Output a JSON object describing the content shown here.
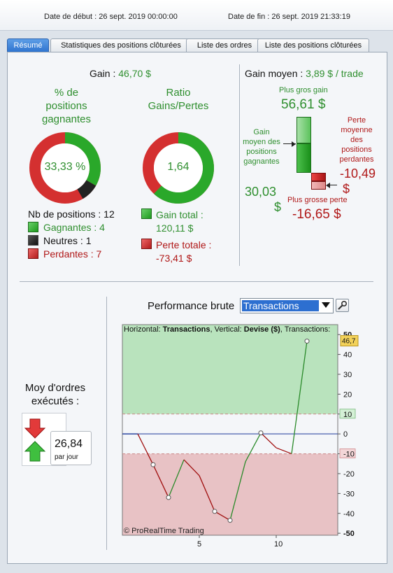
{
  "header": {
    "start_label": "Date de début :",
    "start_value": "26 sept. 2019 00:00:00",
    "end_label": "Date de fin :",
    "end_value": "26 sept. 2019 21:33:19"
  },
  "tabs": [
    {
      "label": "Résumé"
    },
    {
      "label": "Statistiques des positions clôturées"
    },
    {
      "label": "Liste des ordres"
    },
    {
      "label": "Liste des positions clôturées"
    }
  ],
  "summary": {
    "gain_label": "Gain :",
    "gain_value": "46,70 $",
    "pct_title_1": "% de",
    "pct_title_2": "positions",
    "pct_title_3": "gagnantes",
    "pct_value": "33,33 %",
    "ratio_title_1": "Ratio",
    "ratio_title_2": "Gains/Pertes",
    "ratio_value": "1,64",
    "nb_positions": "Nb de positions : 12",
    "gagnantes": "Gagnantes : 4",
    "neutres": "Neutres : 1",
    "perdantes": "Perdantes : 7",
    "gain_total_label": "Gain total :",
    "gain_total_value": "120,11 $",
    "perte_totale_label": "Perte totale :",
    "perte_totale_value": "-73,41 $",
    "donut_pct": {
      "win": 0.3333,
      "neutral": 0.0833,
      "loss": 0.5833
    },
    "donut_ratio": {
      "gain": 120.11,
      "loss": 73.41
    }
  },
  "gain_moyen": {
    "label": "Gain moyen :",
    "value": "3,89 $ / trade",
    "plus_gros_gain_label": "Plus gros gain",
    "plus_gros_gain_value": "56,61 $",
    "gain_moyen_gagnantes_1": "Gain",
    "gain_moyen_gagnantes_2": "moyen des",
    "gain_moyen_gagnantes_3": "positions",
    "gain_moyen_gagnantes_4": "gagnantes",
    "gain_moyen_gagnantes_value_1": "30,03",
    "gain_moyen_gagnantes_value_2": "$",
    "perte_moyenne_1": "Perte",
    "perte_moyenne_2": "moyenne",
    "perte_moyenne_3": "des",
    "perte_moyenne_4": "positions",
    "perte_moyenne_5": "perdantes",
    "perte_moyenne_value_1": "-10,49",
    "perte_moyenne_value_2": "$",
    "plus_grosse_perte_label": "Plus grosse perte",
    "plus_grosse_perte_value": "-16,65 $"
  },
  "performance": {
    "label": "Performance brute",
    "dropdown_value": "Transactions"
  },
  "orders": {
    "title_1": "Moy d'ordres",
    "title_2": "exécutés :",
    "value": "26,84",
    "unit": "par jour"
  },
  "chart_data": {
    "type": "line",
    "title_prefix_1": "Horizontal: ",
    "title_bold_1": "Transactions",
    "title_prefix_2": ", Vertical: ",
    "title_bold_2": "Devise ($)",
    "title_prefix_3": ", Transactions:",
    "watermark": "© ProRealTime Trading",
    "x": [
      0,
      1,
      2,
      3,
      4,
      5,
      6,
      7,
      8,
      9,
      10,
      11,
      12
    ],
    "y": [
      0,
      0,
      -15.5,
      -32,
      -13,
      -21,
      -39,
      -43.5,
      -14,
      0.5,
      -7,
      -10,
      46.7
    ],
    "segment_colors": [
      "#1e3a9a",
      "#a01010",
      "#a01010",
      "#2a8a2a",
      "#a01010",
      "#a01010",
      "#a01010",
      "#2a8a2a",
      "#2a8a2a",
      "#a01010",
      "#a01010",
      "#2a8a2a"
    ],
    "markers_x": [
      2,
      3,
      6,
      7,
      9,
      12
    ],
    "xticks": [
      {
        "v": 5,
        "label": "5"
      },
      {
        "v": 10,
        "label": "10"
      }
    ],
    "yticks": [
      {
        "v": 50,
        "label": "50",
        "bold": true
      },
      {
        "v": 40,
        "label": "40"
      },
      {
        "v": 30,
        "label": "30"
      },
      {
        "v": 20,
        "label": "20"
      },
      {
        "v": 10,
        "label": "10",
        "box": "green"
      },
      {
        "v": 0,
        "label": "0"
      },
      {
        "v": -10,
        "label": "-10",
        "box": "red"
      },
      {
        "v": -20,
        "label": "-20"
      },
      {
        "v": -30,
        "label": "-30"
      },
      {
        "v": -40,
        "label": "-40"
      },
      {
        "v": -50,
        "label": "-50",
        "bold": true
      }
    ],
    "last_value_label": "46,7",
    "xlim": [
      0,
      14
    ],
    "ylim": [
      -51,
      55
    ],
    "upper_zone": 10,
    "lower_zone": -10
  }
}
